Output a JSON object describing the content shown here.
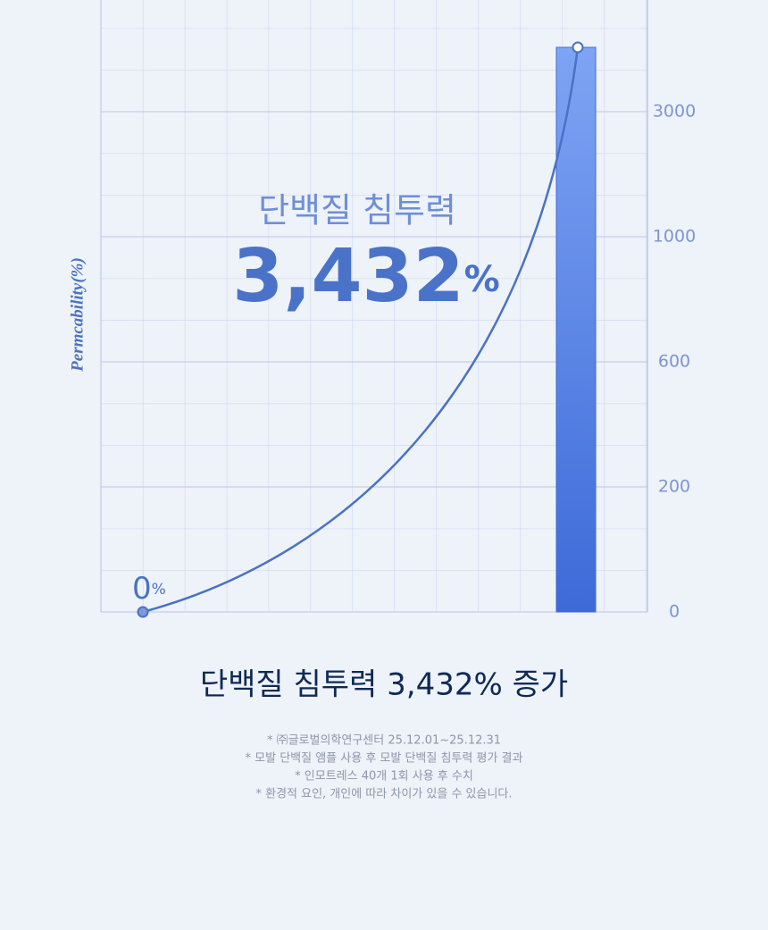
{
  "chart_data": {
    "type": "bar",
    "headline": "단백질 침투력",
    "categories": [
      null,
      null
    ],
    "values": [
      0,
      3432
    ],
    "value_labels": [
      "0",
      "3,432"
    ],
    "unit": "%",
    "color": "#3d6ad8",
    "line_color": "#4a72c0",
    "ylabel": "Permcability(%)",
    "ylim": [
      0,
      3750
    ],
    "yticks": [
      0,
      200,
      600,
      1000,
      3000
    ],
    "grid": true,
    "caption": "단백질 침투력 3,432% 증가",
    "notes": [
      "* ㈜글로벌의학연구센터 25.12.01~25.12.31",
      "* 모발 단백질 앰플 사용 후 모발 단백질 침투력 평가 결과",
      "* 인모트레스 40개 1회 사용 후 수치",
      "* 환경적 요인, 개인에 따라 차이가 있을 수 있습니다."
    ]
  }
}
